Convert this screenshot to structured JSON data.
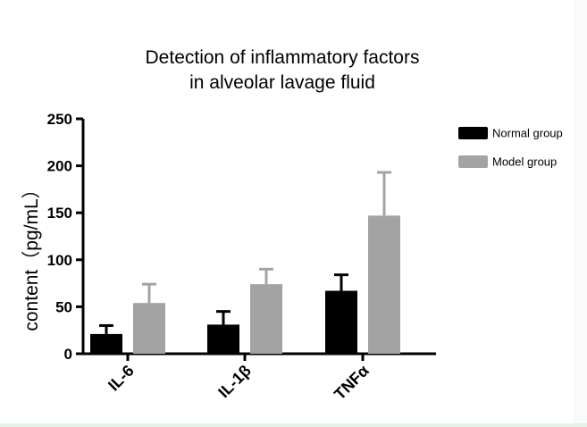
{
  "chart_data": {
    "type": "bar",
    "title": [
      "Detection of inflammatory factors",
      "in alveolar lavage fluid"
    ],
    "xlabel": "",
    "ylabel": "content（pg/mL）",
    "categories": [
      "IL-6",
      "IL-1β",
      "TNFα"
    ],
    "ylim": [
      0,
      250
    ],
    "yticks": [
      "0",
      "50",
      "100",
      "150",
      "200",
      "250"
    ],
    "series": [
      {
        "name": "Normal group",
        "color": "#000000",
        "values": [
          21,
          31,
          67
        ],
        "errors": [
          9,
          14,
          17
        ]
      },
      {
        "name": "Model group",
        "color": "#a3a3a3",
        "values": [
          54,
          74,
          147
        ],
        "errors": [
          20,
          16,
          46
        ]
      }
    ],
    "grid": false,
    "legend_position": "right"
  }
}
